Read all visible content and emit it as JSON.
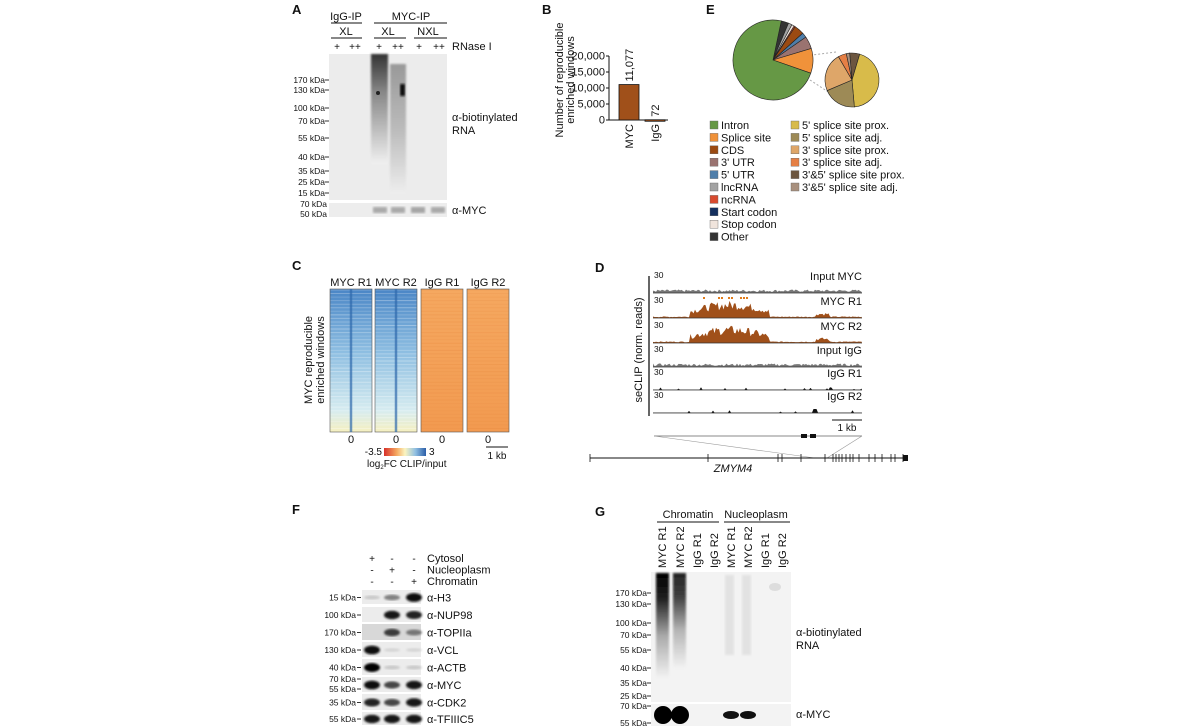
{
  "panel_a": {
    "label": "A",
    "ip_groups": [
      "IgG-IP",
      "MYC-IP"
    ],
    "conditions": [
      "XL",
      "XL",
      "NXL"
    ],
    "rnase_marks": [
      "+",
      "++",
      "+",
      "++",
      "+",
      "++"
    ],
    "rnase_label": "RNase I",
    "markers": [
      "170 kDa",
      "130 kDa",
      "100 kDa",
      "70 kDa",
      "55 kDa",
      "40 kDa",
      "35 kDa",
      "25 kDa",
      "15 kDa"
    ],
    "myc_markers": [
      "70 kDa",
      "50 kDa"
    ],
    "probe_main_line1": "α-biotinylated",
    "probe_main_line2": "RNA",
    "probe_myc": "α-MYC"
  },
  "panel_b": {
    "label": "B"
  },
  "chart_data": {
    "type": "bar",
    "categories": [
      "MYC",
      "IgG"
    ],
    "values": [
      11077,
      72
    ],
    "value_labels": [
      "11,077",
      "72"
    ],
    "ylabel_line1": "Number of reproducible",
    "ylabel_line2": "enriched windows",
    "yticks": [
      "0",
      "5,000",
      "10,000",
      "15,000",
      "20,000"
    ],
    "ylim": [
      0,
      20000
    ],
    "bar_color": "#a0501a",
    "grid": false
  },
  "panel_e": {
    "label": "E",
    "main_pie": [
      {
        "name": "Other",
        "value": 3,
        "color": "#333333"
      },
      {
        "name": "lncRNA",
        "value": 1.5,
        "color": "#a3a3a3"
      },
      {
        "name": "Stop codon",
        "value": 1,
        "color": "#f0e4dc"
      },
      {
        "name": "ncRNA",
        "value": 0.5,
        "color": "#d84a2e"
      },
      {
        "name": "CDS",
        "value": 4,
        "color": "#9b4a12"
      },
      {
        "name": "5' UTR",
        "value": 2,
        "color": "#4f7eaa"
      },
      {
        "name": "3' UTR",
        "value": 5,
        "color": "#9a7370"
      },
      {
        "name": "Splice site",
        "value": 10,
        "color": "#f0923a"
      },
      {
        "name": "Intron",
        "value": 73,
        "color": "#669845"
      }
    ],
    "splice_pie": [
      {
        "name": "3'&5' splice site prox.",
        "value": 6,
        "color": "#6c5640"
      },
      {
        "name": "5' splice site prox.",
        "value": 44,
        "color": "#d8bb4a"
      },
      {
        "name": "5' splice site adj.",
        "value": 20,
        "color": "#9d8a56"
      },
      {
        "name": "3' splice site prox.",
        "value": 23,
        "color": "#dea669"
      },
      {
        "name": "3' splice site adj.",
        "value": 5,
        "color": "#e57f45"
      },
      {
        "name": "3'&5' splice site adj.",
        "value": 2,
        "color": "#a8907e"
      }
    ],
    "legend_col1": [
      {
        "label": "Intron",
        "color": "#669845"
      },
      {
        "label": "Splice site",
        "color": "#f0923a"
      },
      {
        "label": "CDS",
        "color": "#9b4a12"
      },
      {
        "label": "3' UTR",
        "color": "#9a7370"
      },
      {
        "label": "5' UTR",
        "color": "#4f7eaa"
      },
      {
        "label": "lncRNA",
        "color": "#a3a3a3"
      },
      {
        "label": "ncRNA",
        "color": "#d84a2e"
      },
      {
        "label": "Start codon",
        "color": "#142f5e"
      },
      {
        "label": "Stop codon",
        "color": "#f0e4dc"
      },
      {
        "label": "Other",
        "color": "#333333"
      }
    ],
    "legend_col2": [
      {
        "label": "5' splice site prox.",
        "color": "#d8bb4a"
      },
      {
        "label": "5' splice site adj.",
        "color": "#9d8a56"
      },
      {
        "label": "3' splice site prox.",
        "color": "#dea669"
      },
      {
        "label": "3' splice site adj.",
        "color": "#e57f45"
      },
      {
        "label": "3'&5' splice site prox.",
        "color": "#6c5640"
      },
      {
        "label": "3'&5' splice site adj.",
        "color": "#a8907e"
      }
    ]
  },
  "panel_c": {
    "label": "C",
    "columns": [
      "MYC R1",
      "MYC R2",
      "IgG R1",
      "IgG R2"
    ],
    "ylabel_line1": "MYC reproducible",
    "ylabel_line2": "enriched windows",
    "center_tick": "0",
    "colorbar_min": "-3.5",
    "colorbar_max": "3",
    "colorbar_label_pre": "log",
    "colorbar_label_sub": "2",
    "colorbar_label_post": "FC CLIP/input",
    "scale_bar": "1 kb"
  },
  "panel_d": {
    "label": "D",
    "ylabel": "seCLIP (norm. reads)",
    "tracks": [
      {
        "name": "Input MYC",
        "scale": "30",
        "color": "#777777"
      },
      {
        "name": "MYC R1",
        "scale": "30",
        "color": "#a0501a"
      },
      {
        "name": "MYC R2",
        "scale": "30",
        "color": "#a0501a"
      },
      {
        "name": "Input IgG",
        "scale": "30",
        "color": "#777777"
      },
      {
        "name": "IgG R1",
        "scale": "30",
        "color": "#111111"
      },
      {
        "name": "IgG R2",
        "scale": "30",
        "color": "#111111"
      }
    ],
    "scale_bar": "1 kb",
    "gene": "ZMYM4"
  },
  "panel_f": {
    "label": "F",
    "fractions": [
      {
        "name": "Cytosol",
        "marks": [
          "+",
          "-",
          "-"
        ]
      },
      {
        "name": "Nucleoplasm",
        "marks": [
          "-",
          "+",
          "-"
        ]
      },
      {
        "name": "Chromatin",
        "marks": [
          "-",
          "-",
          "+"
        ]
      }
    ],
    "blots": [
      {
        "probe": "α-H3",
        "markers": [
          "15 kDa"
        ],
        "bands": [
          0.15,
          0.45,
          0.95
        ]
      },
      {
        "probe": "α-NUP98",
        "markers": [
          "100 kDa"
        ],
        "bands": [
          0.0,
          0.9,
          0.85
        ]
      },
      {
        "probe": "α-TOPIIa",
        "markers": [
          "170 kDa"
        ],
        "bands": [
          0.0,
          0.75,
          0.5
        ]
      },
      {
        "probe": "α-VCL",
        "markers": [
          "130 kDa"
        ],
        "bands": [
          0.95,
          0.1,
          0.1
        ]
      },
      {
        "probe": "α-ACTB",
        "markers": [
          "40 kDa"
        ],
        "bands": [
          1.0,
          0.15,
          0.15
        ]
      },
      {
        "probe": "α-MYC",
        "markers": [
          "70 kDa",
          "55 kDa"
        ],
        "bands": [
          0.95,
          0.7,
          0.9
        ]
      },
      {
        "probe": "α-CDK2",
        "markers": [
          "35 kDa"
        ],
        "bands": [
          0.85,
          0.7,
          0.9
        ]
      },
      {
        "probe": "α-TFIIIC5",
        "markers": [
          "55 kDa"
        ],
        "bands": [
          0.9,
          0.9,
          0.9
        ]
      }
    ]
  },
  "panel_g": {
    "label": "G",
    "groups": [
      "Chromatin",
      "Nucleoplasm"
    ],
    "lanes": [
      "MYC R1",
      "MYC R2",
      "IgG R1",
      "IgG R2",
      "MYC R1",
      "MYC R2",
      "IgG R1",
      "IgG R2"
    ],
    "markers": [
      "170 kDa",
      "130 kDa",
      "100 kDa",
      "70 kDa",
      "55 kDa",
      "40 kDa",
      "35 kDa",
      "25 kDa"
    ],
    "myc_markers": [
      "70 kDa",
      "55 kDa"
    ],
    "probe_main_line1": "α-biotinylated",
    "probe_main_line2": "RNA",
    "probe_myc": "α-MYC"
  }
}
